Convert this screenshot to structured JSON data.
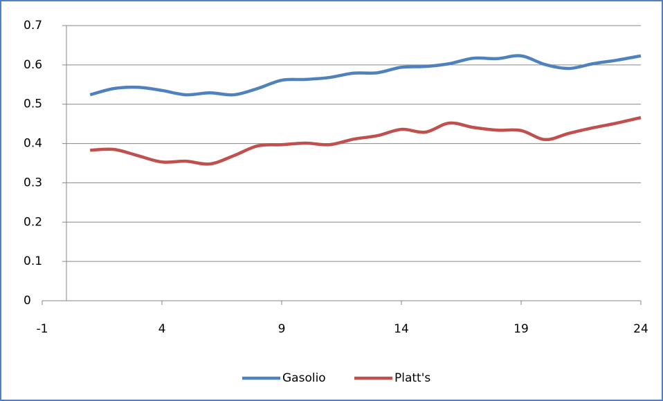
{
  "chart_data": {
    "type": "line",
    "x": [
      1,
      2,
      3,
      4,
      5,
      6,
      7,
      8,
      9,
      10,
      11,
      12,
      13,
      14,
      15,
      16,
      17,
      18,
      19,
      20,
      21,
      22,
      23,
      24
    ],
    "series": [
      {
        "name": "Gasolio",
        "color": "#4f81bd",
        "values": [
          0.524,
          0.54,
          0.543,
          0.535,
          0.524,
          0.529,
          0.524,
          0.54,
          0.561,
          0.563,
          0.568,
          0.579,
          0.58,
          0.594,
          0.596,
          0.603,
          0.617,
          0.616,
          0.623,
          0.601,
          0.591,
          0.603,
          0.612,
          0.623
        ]
      },
      {
        "name": "Platt's",
        "color": "#c0504d",
        "values": [
          0.383,
          0.385,
          0.369,
          0.353,
          0.355,
          0.348,
          0.369,
          0.394,
          0.397,
          0.401,
          0.397,
          0.411,
          0.42,
          0.436,
          0.429,
          0.452,
          0.441,
          0.434,
          0.433,
          0.41,
          0.426,
          0.44,
          0.452,
          0.466
        ]
      }
    ],
    "xlim": [
      -1,
      24
    ],
    "xticks": [
      -1,
      4,
      9,
      14,
      19,
      24
    ],
    "ylim": [
      0,
      0.7
    ],
    "yticks": [
      0,
      0.1,
      0.2,
      0.3,
      0.4,
      0.5,
      0.6,
      0.7
    ],
    "grid": true,
    "legend": "bottom"
  }
}
